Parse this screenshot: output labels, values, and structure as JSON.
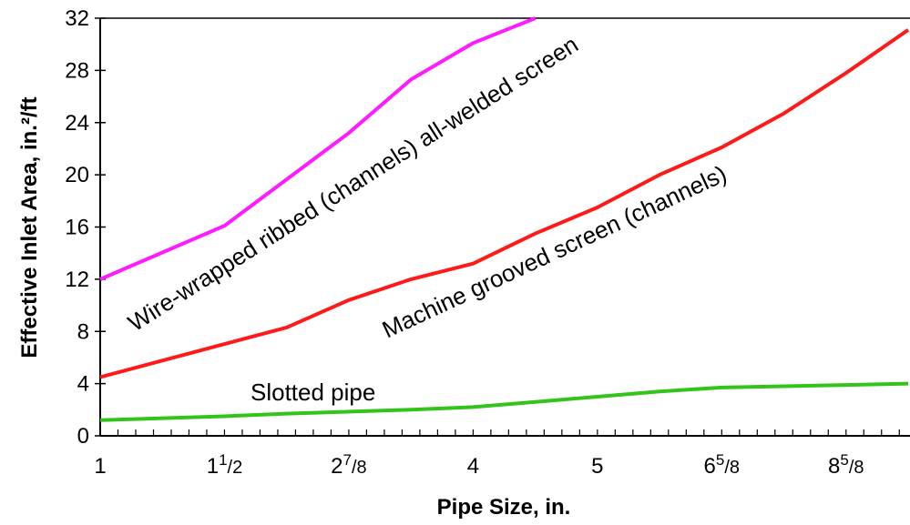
{
  "chart_data": {
    "type": "line",
    "xlabel": "Pipe Size, in.",
    "ylabel": "Effective Inlet Area, in.²/ft",
    "ylim": [
      0,
      32
    ],
    "yticks": [
      0,
      4,
      8,
      12,
      16,
      20,
      24,
      28,
      32
    ],
    "xlim": [
      1,
      7.5
    ],
    "xticks": [
      {
        "x": 1,
        "label": "1",
        "whole": "1",
        "num": "",
        "den": ""
      },
      {
        "x": 2,
        "label": "1 1/2",
        "whole": "1",
        "num": "1",
        "den": "/2"
      },
      {
        "x": 3,
        "label": "2 7/8",
        "whole": "2",
        "num": "7",
        "den": "/8"
      },
      {
        "x": 4,
        "label": "4",
        "whole": "4",
        "num": "",
        "den": ""
      },
      {
        "x": 5,
        "label": "5",
        "whole": "5",
        "num": "",
        "den": ""
      },
      {
        "x": 6,
        "label": "6 5/8",
        "whole": "6",
        "num": "5",
        "den": "/8"
      },
      {
        "x": 7,
        "label": "8 5/8",
        "whole": "8",
        "num": "5",
        "den": "/8"
      }
    ],
    "grid": false,
    "series": [
      {
        "name": "Wire-wrapped ribbed (channels) all-welded screen",
        "color": "#ff1aff",
        "x": [
          1,
          2,
          3,
          3.5,
          4,
          4.5
        ],
        "y": [
          12.0,
          16.1,
          23.2,
          27.3,
          30.1,
          32.0
        ]
      },
      {
        "name": "Machine grooved screen (channels)",
        "color": "#ff1a1a",
        "x": [
          1,
          2.5,
          3,
          3.5,
          4,
          4.5,
          5,
          5.5,
          6,
          6.5,
          7,
          7.5
        ],
        "y": [
          4.5,
          8.3,
          10.4,
          12.0,
          13.2,
          15.5,
          17.5,
          20.0,
          22.1,
          24.7,
          27.8,
          31.1
        ]
      },
      {
        "name": "Slotted pipe",
        "color": "#33c41a",
        "x": [
          1,
          2,
          2.5,
          3.5,
          4,
          4.5,
          5,
          5.5,
          6,
          6.5,
          7,
          7.5
        ],
        "y": [
          1.2,
          1.5,
          1.7,
          2.0,
          2.2,
          2.6,
          3.0,
          3.4,
          3.7,
          3.8,
          3.9,
          4.0
        ]
      }
    ]
  },
  "labels": {
    "magenta": "Wire-wrapped ribbed (channels) all-welded screen",
    "red": "Machine grooved screen (channels)",
    "green": "Slotted pipe"
  }
}
